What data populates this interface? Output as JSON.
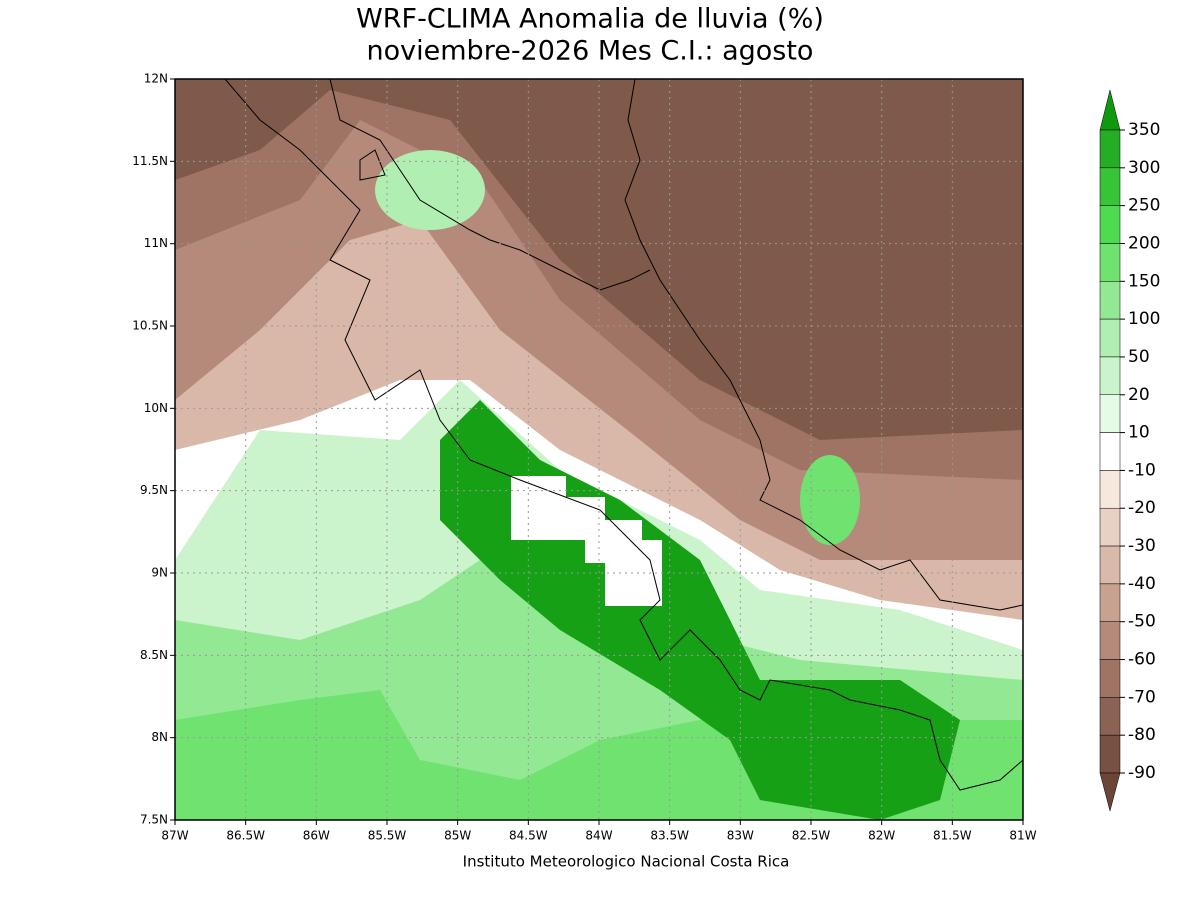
{
  "title": [
    "WRF-CLIMA Anomalia de lluvia (%)",
    "noviembre-2026 Mes C.I.: agosto"
  ],
  "map": {
    "xlim": [
      -87,
      -81
    ],
    "ylim": [
      7.5,
      12
    ],
    "xticks": [
      {
        "value": -87,
        "label": "87W"
      },
      {
        "value": -86.5,
        "label": "86.5W"
      },
      {
        "value": -86,
        "label": "86W"
      },
      {
        "value": -85.5,
        "label": "85.5W"
      },
      {
        "value": -85,
        "label": "85W"
      },
      {
        "value": -84.5,
        "label": "84.5W"
      },
      {
        "value": -84,
        "label": "84W"
      },
      {
        "value": -83.5,
        "label": "83.5W"
      },
      {
        "value": -83,
        "label": "83W"
      },
      {
        "value": -82.5,
        "label": "82.5W"
      },
      {
        "value": -82,
        "label": "82W"
      },
      {
        "value": -81.5,
        "label": "81.5W"
      },
      {
        "value": -81,
        "label": "81W"
      }
    ],
    "yticks": [
      {
        "value": 7.5,
        "label": "7.5N"
      },
      {
        "value": 8,
        "label": "8N"
      },
      {
        "value": 8.5,
        "label": "8.5N"
      },
      {
        "value": 9,
        "label": "9N"
      },
      {
        "value": 9.5,
        "label": "9.5N"
      },
      {
        "value": 10,
        "label": "10N"
      },
      {
        "value": 10.5,
        "label": "10.5N"
      },
      {
        "value": 11,
        "label": "11N"
      },
      {
        "value": 11.5,
        "label": "11.5N"
      },
      {
        "value": 12,
        "label": "12N"
      }
    ],
    "grid": true
  },
  "colorbar": {
    "levels": [
      350,
      300,
      250,
      200,
      150,
      100,
      50,
      20,
      10,
      -10,
      -20,
      -30,
      -40,
      -50,
      -60,
      -70,
      -80,
      -90
    ],
    "colors": [
      "#0f990f",
      "#25ad25",
      "#37c437",
      "#4fdb4f",
      "#70e270",
      "#93e893",
      "#b1eeb1",
      "#ccf4cc",
      "#e6fbe6",
      "#ffffff",
      "#f6e8dd",
      "#e8d0c4",
      "#d9b9aa",
      "#c9a191",
      "#b58a7a",
      "#a07464",
      "#8b6253",
      "#785143",
      "#6b4536"
    ]
  },
  "footer": "Instituto Meteorologico Nacional Costa Rica"
}
